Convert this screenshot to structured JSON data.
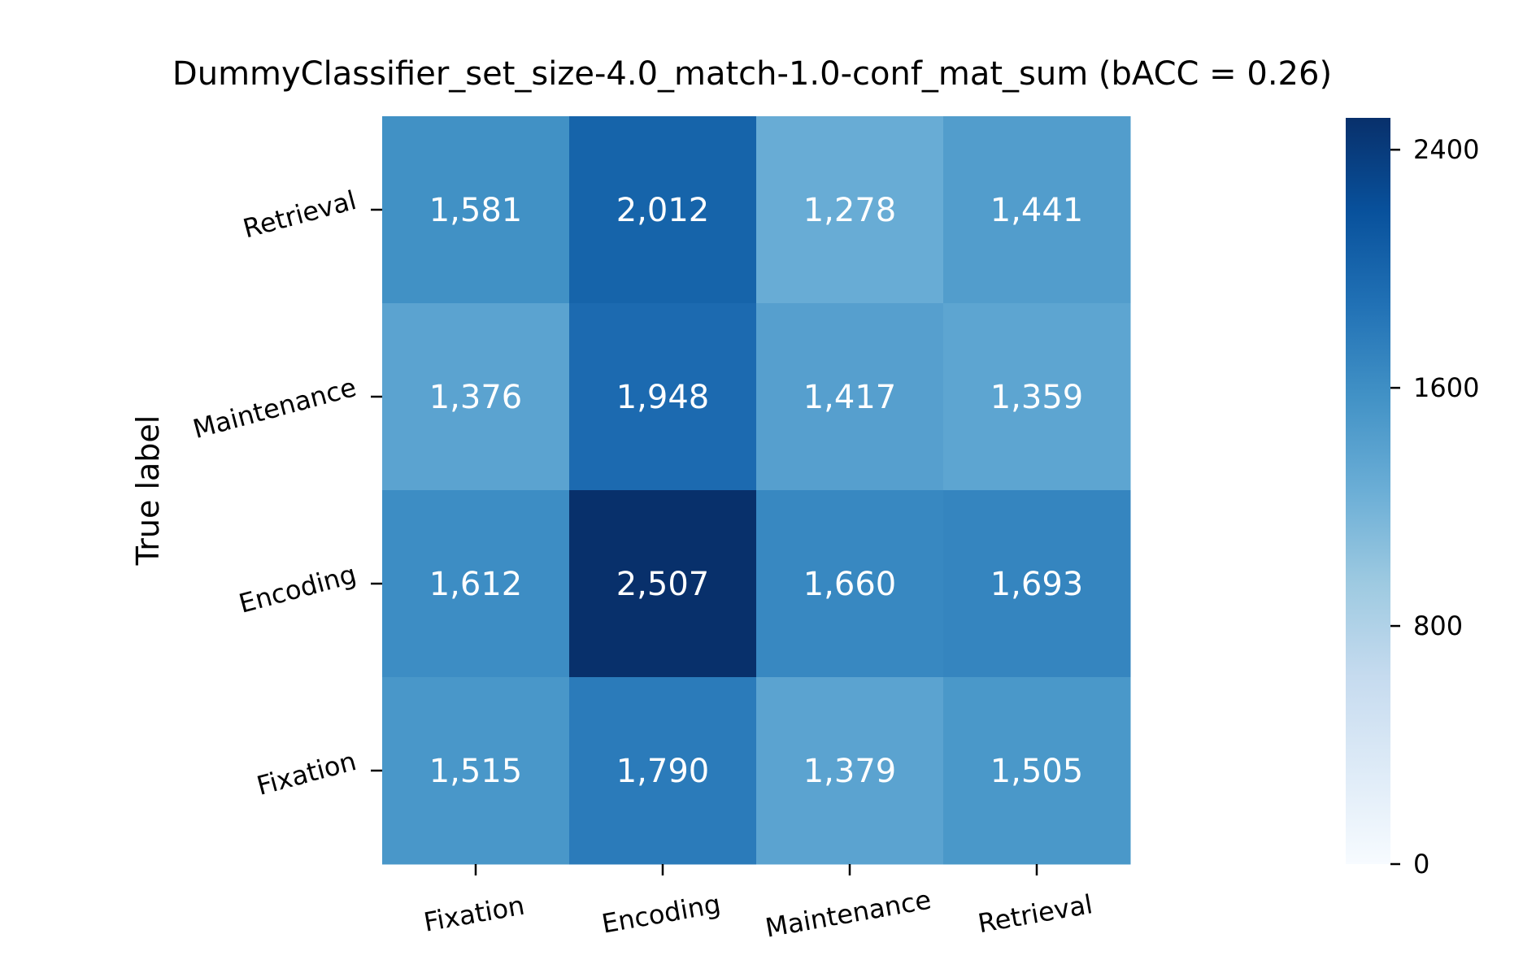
{
  "chart_data": {
    "type": "heatmap",
    "title": "DummyClassifier_set_size-4.0_match-1.0-conf_mat_sum (bACC = 0.26)",
    "ylabel": "True label",
    "xlabel": "",
    "x_categories": [
      "Fixation",
      "Encoding",
      "Maintenance",
      "Retrieval"
    ],
    "y_categories": [
      "Retrieval",
      "Maintenance",
      "Encoding",
      "Fixation"
    ],
    "values": [
      [
        1581,
        2012,
        1278,
        1441
      ],
      [
        1376,
        1948,
        1417,
        1359
      ],
      [
        1612,
        2507,
        1660,
        1693
      ],
      [
        1515,
        1790,
        1379,
        1505
      ]
    ],
    "value_labels": [
      [
        "1,581",
        "2,012",
        "1,278",
        "1,441"
      ],
      [
        "1,376",
        "1,948",
        "1,417",
        "1,359"
      ],
      [
        "1,612",
        "2,507",
        "1,660",
        "1,693"
      ],
      [
        "1,515",
        "1,790",
        "1,379",
        "1,505"
      ]
    ],
    "colorbar": {
      "min": 0,
      "max": 2507,
      "ticks": [
        0,
        800,
        1600,
        2400
      ],
      "tick_labels": [
        "0",
        "800",
        "1600",
        "2400"
      ],
      "colormap": "Blues"
    }
  },
  "colors": {
    "low": "#f7fbff",
    "high": "#08306b",
    "text_on_dark": "#ffffff",
    "text": "#000000"
  }
}
